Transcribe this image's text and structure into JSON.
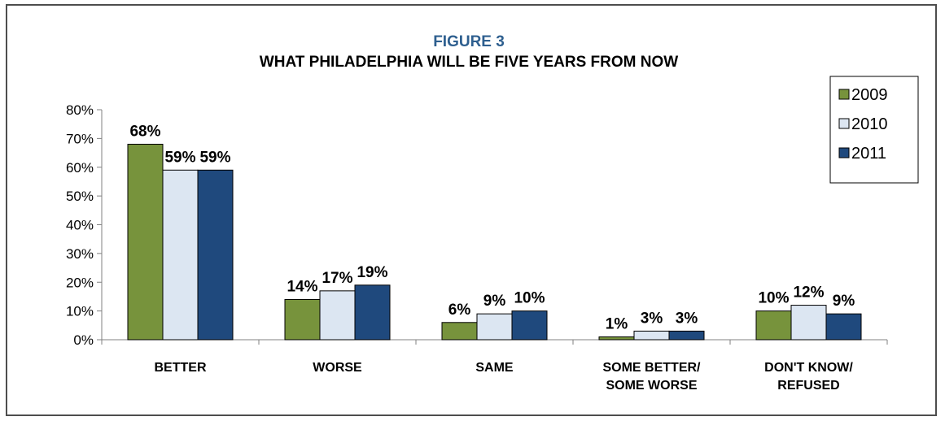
{
  "chart_data": {
    "type": "bar",
    "figure_label": "FIGURE 3",
    "title": "WHAT PHILADELPHIA WILL BE FIVE YEARS FROM NOW",
    "categories": [
      [
        "BETTER"
      ],
      [
        "WORSE"
      ],
      [
        "SAME"
      ],
      [
        "SOME BETTER/",
        "SOME WORSE"
      ],
      [
        "DON'T KNOW/",
        "REFUSED"
      ]
    ],
    "series": [
      {
        "name": "2009",
        "color": "#77933c",
        "values": [
          68,
          14,
          6,
          1,
          10
        ]
      },
      {
        "name": "2010",
        "color": "#dce6f2",
        "values": [
          59,
          17,
          9,
          3,
          12
        ]
      },
      {
        "name": "2011",
        "color": "#1f497d",
        "values": [
          59,
          19,
          10,
          3,
          9
        ]
      }
    ],
    "value_suffix": "%",
    "ylim": [
      0,
      80
    ],
    "yticks": [
      "0%",
      "10%",
      "20%",
      "30%",
      "40%",
      "50%",
      "60%",
      "70%",
      "80%"
    ],
    "grid": false,
    "legend_position": "top-right",
    "xlabel": "",
    "ylabel": ""
  }
}
